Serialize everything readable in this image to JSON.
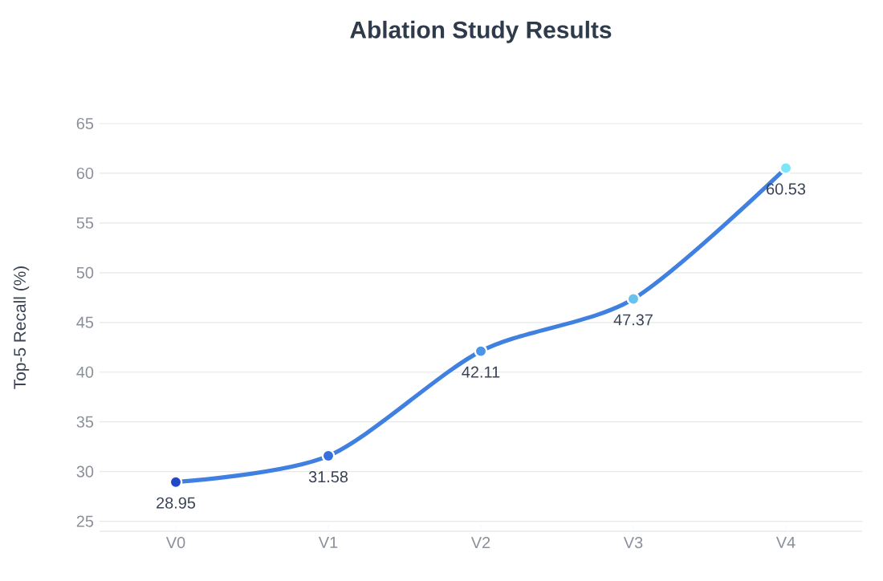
{
  "chart_data": {
    "type": "line",
    "title": "Ablation Study Results",
    "ylabel": "Top-5 Recall (%)",
    "categories": [
      "V0",
      "V1",
      "V2",
      "V3",
      "V4"
    ],
    "values": [
      28.95,
      31.58,
      42.11,
      47.37,
      60.53
    ],
    "color": "#3f80e0",
    "colors": [
      "#2148c8",
      "#3570dc",
      "#4a95e6",
      "#68c2f0",
      "#7ae6f8"
    ],
    "ylim": [
      24,
      65
    ],
    "yticks": [
      25,
      30,
      35,
      40,
      45,
      50,
      55,
      60,
      65
    ],
    "grid": "y",
    "marker": "circle",
    "line_style": "solid",
    "data_labels": true
  }
}
